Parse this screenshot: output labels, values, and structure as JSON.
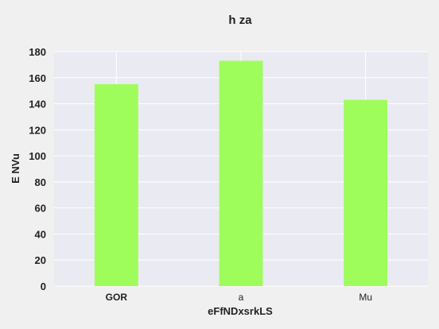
{
  "chart_data": {
    "type": "bar",
    "title": "h za",
    "xlabel": "eFfNDxsrkLS",
    "ylabel": "E NVu",
    "categories": [
      "GOR",
      "a",
      "Mu"
    ],
    "values": [
      155,
      173,
      143
    ],
    "ylim": [
      0,
      180
    ],
    "yticks": [
      0,
      20,
      40,
      60,
      80,
      100,
      120,
      140,
      160,
      180
    ],
    "grid": true,
    "colors": {
      "bar": "#9efd5b",
      "plot_bg": "#eaeaf2",
      "grid": "#ffffff",
      "figure_bg": "#f0f0f0"
    }
  }
}
